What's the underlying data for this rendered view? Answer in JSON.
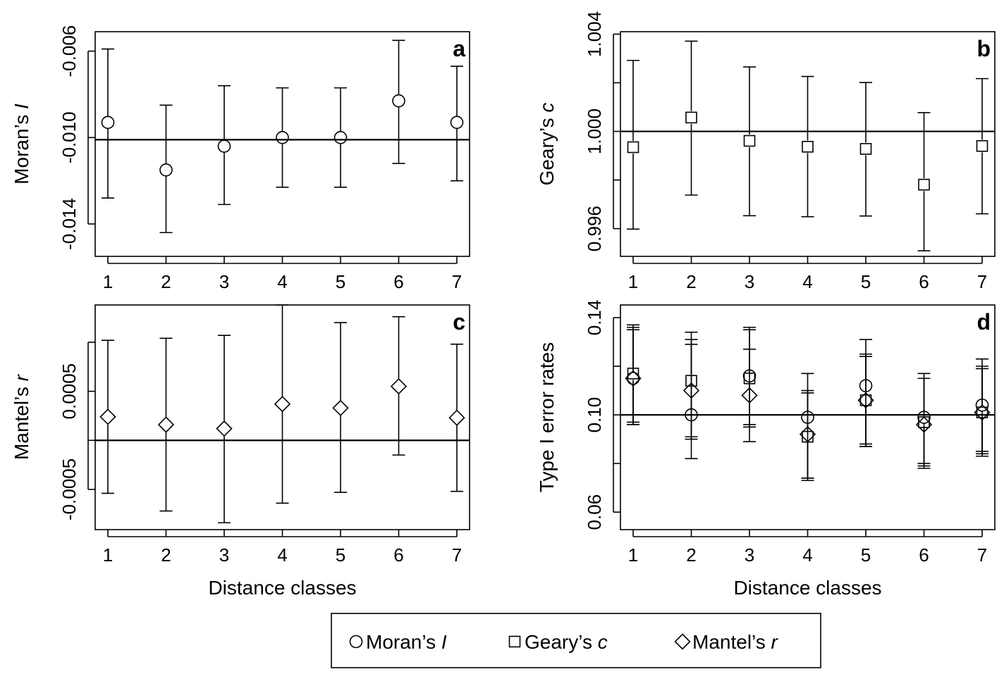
{
  "chart_data": [
    {
      "panel_label": "a",
      "type": "scatter",
      "ylabel": "Moran’s I",
      "ylabel_parts": [
        "Moran’s ",
        "I"
      ],
      "xlabel": "",
      "x": [
        1,
        2,
        3,
        4,
        5,
        6,
        7
      ],
      "x_tick_labels": [
        "1",
        "2",
        "3",
        "4",
        "5",
        "6",
        "7"
      ],
      "ylim": [
        -0.0155,
        -0.0051
      ],
      "y_ticks": [
        -0.006,
        -0.01,
        -0.014
      ],
      "y_tick_labels": [
        "-0.006",
        "-0.010",
        "-0.014"
      ],
      "reference_line": -0.0101,
      "marker": "circle",
      "series": [
        {
          "values": [
            -0.0093,
            -0.0115,
            -0.0104,
            -0.01,
            -0.01,
            -0.0083,
            -0.0093
          ],
          "lower": [
            -0.0128,
            -0.0144,
            -0.0131,
            -0.0123,
            -0.0123,
            -0.0112,
            -0.012
          ],
          "upper": [
            -0.0059,
            -0.0085,
            -0.0076,
            -0.0077,
            -0.0077,
            -0.0055,
            -0.0067
          ]
        }
      ]
    },
    {
      "panel_label": "b",
      "type": "scatter",
      "ylabel": "Geary’s c",
      "ylabel_parts": [
        "Geary’s ",
        "c"
      ],
      "xlabel": "",
      "x": [
        1,
        2,
        3,
        4,
        5,
        6,
        7
      ],
      "x_tick_labels": [
        "1",
        "2",
        "3",
        "4",
        "5",
        "6",
        "7"
      ],
      "ylim": [
        0.99486,
        1.0041
      ],
      "y_ticks": [
        1.004,
        1.002,
        1.0,
        0.998,
        0.996
      ],
      "y_tick_labels": [
        "1.004",
        "",
        "1.000",
        "",
        "0.996"
      ],
      "reference_line": 1.0,
      "marker": "square",
      "series": [
        {
          "values": [
            0.99935,
            1.00057,
            0.99961,
            0.99937,
            0.99928,
            0.99781,
            0.9994
          ],
          "lower": [
            0.99598,
            0.99738,
            0.99653,
            0.99649,
            0.99652,
            0.99509,
            0.99661
          ],
          "upper": [
            1.00292,
            1.00371,
            1.00265,
            1.00226,
            1.00201,
            1.00077,
            1.00217
          ]
        }
      ]
    },
    {
      "panel_label": "c",
      "type": "scatter",
      "ylabel": "Mantel’s r",
      "ylabel_parts": [
        "Mantel’s ",
        "r"
      ],
      "xlabel": "Distance classes",
      "x": [
        1,
        2,
        3,
        4,
        5,
        6,
        7
      ],
      "x_tick_labels": [
        "1",
        "2",
        "3",
        "4",
        "5",
        "6",
        "7"
      ],
      "ylim": [
        -0.00091,
        0.00138
      ],
      "y_ticks": [
        0.001,
        0.0005,
        0.0,
        -0.0005
      ],
      "y_tick_labels": [
        "",
        "0.0005",
        "",
        "-0.0005"
      ],
      "reference_line": 0.0,
      "marker": "diamond",
      "series": [
        {
          "values": [
            0.00024,
            0.00016,
            0.00012,
            0.00037,
            0.00033,
            0.00055,
            0.00023
          ],
          "lower": [
            -0.00054,
            -0.00072,
            -0.00084,
            -0.00064,
            -0.00053,
            -0.00015,
            -0.00052
          ],
          "upper": [
            0.00102,
            0.00104,
            0.00107,
            0.00138,
            0.0012,
            0.00126,
            0.00098
          ]
        }
      ]
    },
    {
      "panel_label": "d",
      "type": "scatter",
      "ylabel": "Type I error rates",
      "xlabel": "Distance classes",
      "x": [
        1,
        2,
        3,
        4,
        5,
        6,
        7
      ],
      "x_tick_labels": [
        "1",
        "2",
        "3",
        "4",
        "5",
        "6",
        "7"
      ],
      "ylim": [
        0.0528,
        0.1452
      ],
      "y_ticks": [
        0.14,
        0.12,
        0.1,
        0.08,
        0.06
      ],
      "y_tick_labels": [
        "0.14",
        "",
        "0.10",
        "",
        "0.06"
      ],
      "reference_line": 0.1,
      "series": [
        {
          "name": "Moran’s I",
          "marker": "circle",
          "values": [
            0.115,
            0.1,
            0.116,
            0.099,
            0.112,
            0.099,
            0.104
          ],
          "lower": [
            0.096,
            0.082,
            0.095,
            0.074,
            0.087,
            0.08,
            0.084
          ],
          "upper": [
            0.136,
            0.131,
            0.136,
            0.117,
            0.131,
            0.117,
            0.123
          ]
        },
        {
          "name": "Geary’s c",
          "marker": "square",
          "values": [
            0.117,
            0.114,
            0.115,
            0.091,
            0.106,
            0.097,
            0.101
          ],
          "lower": [
            0.097,
            0.091,
            0.096,
            0.073,
            0.087,
            0.079,
            0.083
          ],
          "upper": [
            0.137,
            0.134,
            0.135,
            0.11,
            0.125,
            0.115,
            0.12
          ]
        },
        {
          "name": "Mantel’s r",
          "marker": "diamond",
          "values": [
            0.115,
            0.11,
            0.108,
            0.092,
            0.106,
            0.096,
            0.101
          ],
          "lower": [
            0.096,
            0.09,
            0.089,
            0.074,
            0.088,
            0.078,
            0.085
          ],
          "upper": [
            0.135,
            0.129,
            0.127,
            0.109,
            0.124,
            0.115,
            0.119
          ]
        }
      ]
    }
  ],
  "legend": {
    "items": [
      {
        "marker": "circle",
        "label_parts": [
          "Moran’s ",
          "I"
        ]
      },
      {
        "marker": "square",
        "label_parts": [
          "Geary’s ",
          "c"
        ]
      },
      {
        "marker": "diamond",
        "label_parts": [
          "Mantel’s ",
          "r"
        ]
      }
    ]
  }
}
